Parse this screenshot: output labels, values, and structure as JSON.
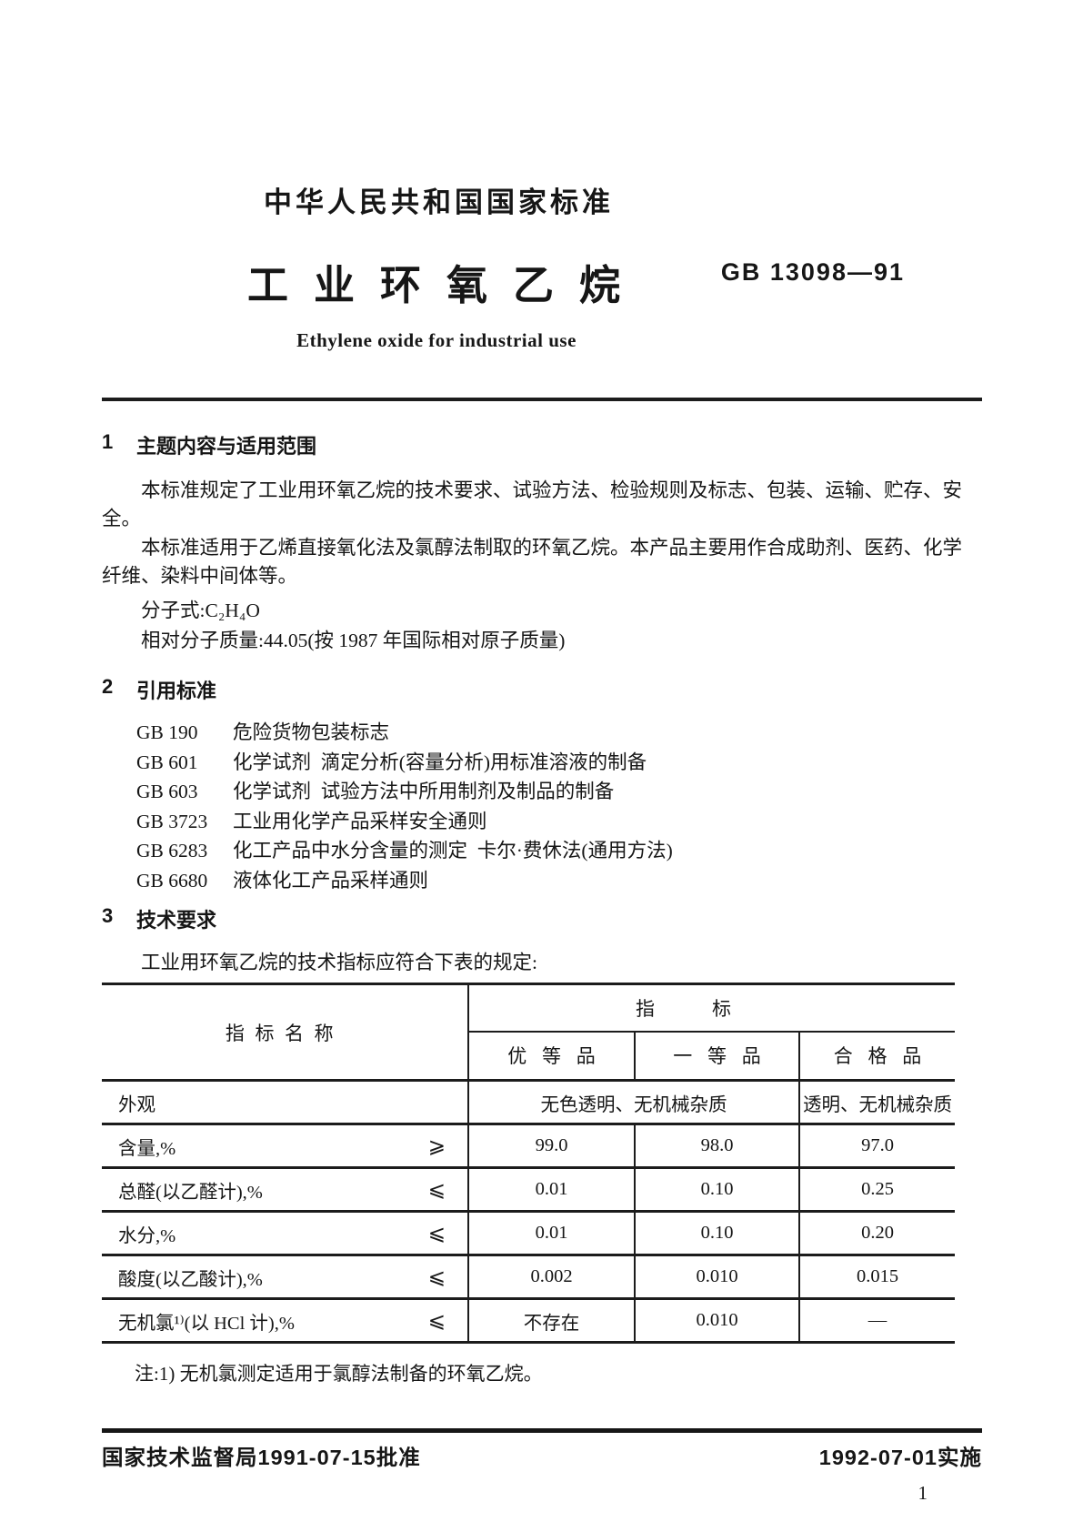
{
  "header": {
    "kicker": "中华人民共和国国家标准",
    "title": "工业环氧乙烷",
    "std_no": "GB 13098—91",
    "subtitle_en": "Ethylene oxide for industrial use"
  },
  "section1": {
    "number": "1",
    "title": "主题内容与适用范围",
    "para1": "本标准规定了工业用环氧乙烷的技术要求、试验方法、检验规则及标志、包装、运输、贮存、安全。",
    "para2": "本标准适用于乙烯直接氧化法及氯醇法制取的环氧乙烷。本产品主要用作合成助剂、医药、化学纤维、染料中间体等。",
    "formula": "分子式:C₂H₄O",
    "molar_mass": "相对分子质量:44.05(按 1987 年国际相对原子质量)"
  },
  "section2": {
    "number": "2",
    "title": "引用标准",
    "refs": [
      {
        "code": "GB 190",
        "title": "危险货物包装标志"
      },
      {
        "code": "GB 601",
        "title": "化学试剂  滴定分析(容量分析)用标准溶液的制备"
      },
      {
        "code": "GB 603",
        "title": "化学试剂  试验方法中所用制剂及制品的制备"
      },
      {
        "code": "GB 3723",
        "title": "工业用化学产品采样安全通则"
      },
      {
        "code": "GB 6283",
        "title": "化工产品中水分含量的测定  卡尔·费休法(通用方法)"
      },
      {
        "code": "GB 6680",
        "title": "液体化工产品采样通则"
      }
    ]
  },
  "section3": {
    "number": "3",
    "title": "技术要求",
    "intro": "工业用环氧乙烷的技术指标应符合下表的规定:",
    "table": {
      "col_name_header": "指标名称",
      "group_header": "指标",
      "grade_headers": [
        "优等品",
        "一等品",
        "合格品"
      ],
      "rows": [
        {
          "name": "外观",
          "op": "",
          "merged": "无色透明、无机械杂质",
          "qualified": "透明、无机械杂质",
          "span": true
        },
        {
          "name": "含量,%",
          "op": "⩾",
          "premium": "99.0",
          "first": "98.0",
          "qualified": "97.0"
        },
        {
          "name": "总醛(以乙醛计),%",
          "op": "⩽",
          "premium": "0.01",
          "first": "0.10",
          "qualified": "0.25"
        },
        {
          "name": "水分,%",
          "op": "⩽",
          "premium": "0.01",
          "first": "0.10",
          "qualified": "0.20"
        },
        {
          "name": "酸度(以乙酸计),%",
          "op": "⩽",
          "premium": "0.002",
          "first": "0.010",
          "qualified": "0.015"
        },
        {
          "name": "无机氯¹⁾(以 HCl 计),%",
          "op": "⩽",
          "premium": "不存在",
          "first": "0.010",
          "qualified": "—"
        }
      ],
      "note": "注:1) 无机氯测定适用于氯醇法制备的环氧乙烷。"
    }
  },
  "footer": {
    "approval": "国家技术监督局1991-07-15批准",
    "implementation": "1992-07-01实施",
    "page_number": "1"
  }
}
